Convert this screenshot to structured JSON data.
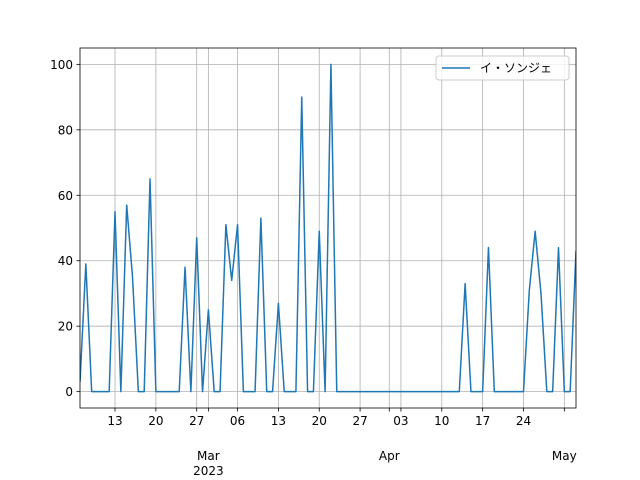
{
  "chart_data": {
    "type": "line",
    "x": [
      "2023-02-07",
      "2023-02-08",
      "2023-02-09",
      "2023-02-10",
      "2023-02-11",
      "2023-02-12",
      "2023-02-13",
      "2023-02-14",
      "2023-02-15",
      "2023-02-16",
      "2023-02-17",
      "2023-02-18",
      "2023-02-19",
      "2023-02-20",
      "2023-02-21",
      "2023-02-22",
      "2023-02-23",
      "2023-02-24",
      "2023-02-25",
      "2023-02-26",
      "2023-02-27",
      "2023-02-28",
      "2023-03-01",
      "2023-03-02",
      "2023-03-03",
      "2023-03-04",
      "2023-03-05",
      "2023-03-06",
      "2023-03-07",
      "2023-03-08",
      "2023-03-09",
      "2023-03-10",
      "2023-03-11",
      "2023-03-12",
      "2023-03-13",
      "2023-03-14",
      "2023-03-15",
      "2023-03-16",
      "2023-03-17",
      "2023-03-18",
      "2023-03-19",
      "2023-03-20",
      "2023-03-21",
      "2023-03-22",
      "2023-03-23",
      "2023-03-24",
      "2023-03-25",
      "2023-03-26",
      "2023-03-27",
      "2023-03-28",
      "2023-03-29",
      "2023-03-30",
      "2023-03-31",
      "2023-04-01",
      "2023-04-02",
      "2023-04-03",
      "2023-04-04",
      "2023-04-05",
      "2023-04-06",
      "2023-04-07",
      "2023-04-08",
      "2023-04-09",
      "2023-04-10",
      "2023-04-11",
      "2023-04-12",
      "2023-04-13",
      "2023-04-14",
      "2023-04-15",
      "2023-04-16",
      "2023-04-17",
      "2023-04-18",
      "2023-04-19",
      "2023-04-20",
      "2023-04-21",
      "2023-04-22",
      "2023-04-23",
      "2023-04-24",
      "2023-04-25",
      "2023-04-26",
      "2023-04-27",
      "2023-04-28",
      "2023-04-29",
      "2023-04-30",
      "2023-05-01",
      "2023-05-02",
      "2023-05-03"
    ],
    "series": [
      {
        "name": "イ・ソンジェ",
        "color": "#1f77b4",
        "values": [
          3,
          39,
          0,
          0,
          0,
          0,
          55,
          0,
          57,
          35,
          0,
          0,
          65,
          0,
          0,
          0,
          0,
          0,
          38,
          0,
          47,
          0,
          25,
          0,
          0,
          51,
          34,
          51,
          0,
          0,
          0,
          53,
          0,
          0,
          27,
          0,
          0,
          0,
          90,
          0,
          0,
          49,
          0,
          100,
          0,
          0,
          0,
          0,
          0,
          0,
          0,
          0,
          0,
          0,
          0,
          0,
          0,
          0,
          0,
          0,
          0,
          0,
          0,
          0,
          0,
          0,
          33,
          0,
          0,
          0,
          44,
          0,
          0,
          0,
          0,
          0,
          0,
          31,
          49,
          30,
          0,
          0,
          44,
          0,
          0,
          43
        ]
      }
    ],
    "xlim": [
      "2023-02-07",
      "2023-05-03"
    ],
    "xticks": [
      {
        "value": "2023-02-13",
        "label": "13"
      },
      {
        "value": "2023-02-20",
        "label": "20"
      },
      {
        "value": "2023-02-27",
        "label": "27"
      },
      {
        "value": "2023-03-01",
        "label": "Mar",
        "sublabel": "2023"
      },
      {
        "value": "2023-03-06",
        "label": "06"
      },
      {
        "value": "2023-03-13",
        "label": "13"
      },
      {
        "value": "2023-03-20",
        "label": "20"
      },
      {
        "value": "2023-03-27",
        "label": "27"
      },
      {
        "value": "2023-04-01",
        "label": "Apr"
      },
      {
        "value": "2023-04-03",
        "label": "03"
      },
      {
        "value": "2023-04-10",
        "label": "10"
      },
      {
        "value": "2023-04-17",
        "label": "17"
      },
      {
        "value": "2023-04-24",
        "label": "24"
      },
      {
        "value": "2023-05-01",
        "label": "May"
      }
    ],
    "ylim": [
      -5,
      105
    ],
    "yticks": [
      0,
      20,
      40,
      60,
      80,
      100
    ],
    "grid": true,
    "legend": "upper right"
  }
}
